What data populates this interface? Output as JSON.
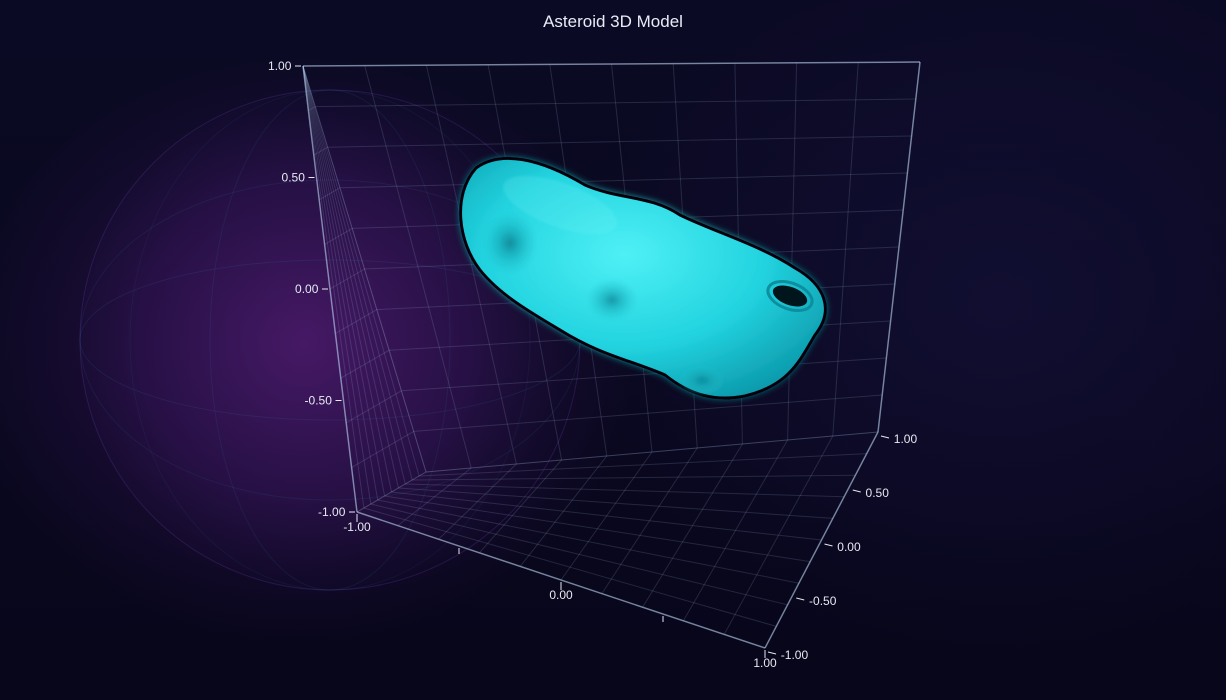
{
  "chart_data": {
    "type": "surface3d",
    "title": "Asteroid 3D Model",
    "series": [
      {
        "name": "",
        "color": "#27d4e0",
        "shape": "elongated irregular body"
      }
    ],
    "axes": {
      "y": {
        "range": [
          -1,
          1
        ],
        "ticks": [
          "1.00",
          "0.50",
          "0.00",
          "-0.50",
          "-1.00"
        ]
      },
      "x": {
        "range": [
          -1,
          1
        ],
        "ticks": [
          "-1.00",
          "0.00",
          "1.00"
        ]
      },
      "z": {
        "range": [
          -1,
          1
        ],
        "ticks": [
          "1.00",
          "0.50",
          "0.00",
          "-0.50",
          "-1.00"
        ]
      }
    },
    "grid": true,
    "background": "globe"
  }
}
